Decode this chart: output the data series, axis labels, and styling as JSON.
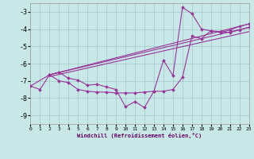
{
  "xlabel": "Windchill (Refroidissement éolien,°C)",
  "background_color": "#c8e8e8",
  "grid_color": "#a0c8c8",
  "line_color": "#993399",
  "xlim": [
    0,
    23
  ],
  "ylim": [
    -9.5,
    -2.5
  ],
  "yticks": [
    -9,
    -8,
    -7,
    -6,
    -5,
    -4,
    -3
  ],
  "xticks": [
    0,
    1,
    2,
    3,
    4,
    5,
    6,
    7,
    8,
    9,
    10,
    11,
    12,
    13,
    14,
    15,
    16,
    17,
    18,
    19,
    20,
    21,
    22,
    23
  ],
  "line1_x": [
    0,
    2,
    3,
    4,
    5,
    6,
    7,
    8,
    9,
    10,
    11,
    12,
    13,
    14,
    15,
    16,
    17,
    18,
    19,
    20,
    21,
    22,
    23
  ],
  "line1_y": [
    -7.3,
    -6.65,
    -7.0,
    -7.1,
    -7.5,
    -7.6,
    -7.65,
    -7.65,
    -7.7,
    -7.7,
    -7.7,
    -7.65,
    -7.6,
    -7.6,
    -7.5,
    -6.8,
    -4.4,
    -4.55,
    -4.1,
    -4.15,
    -4.2,
    -4.05,
    -3.9
  ],
  "line2_x": [
    0,
    1,
    2,
    3,
    4,
    5,
    6,
    7,
    8,
    9,
    10,
    11,
    12,
    13,
    14,
    15,
    16,
    17,
    18,
    19,
    20,
    21,
    22,
    23
  ],
  "line2_y": [
    -7.3,
    -7.5,
    -6.65,
    -6.5,
    -6.85,
    -6.95,
    -7.25,
    -7.2,
    -7.35,
    -7.5,
    -8.5,
    -8.2,
    -8.55,
    -7.6,
    -5.8,
    -6.7,
    -2.75,
    -3.1,
    -4.0,
    -4.1,
    -4.2,
    -4.05,
    -3.85,
    -3.7
  ],
  "reg_lines": [
    {
      "x": [
        2.0,
        23
      ],
      "y": [
        -6.65,
        -3.7
      ]
    },
    {
      "x": [
        2.0,
        23
      ],
      "y": [
        -6.65,
        -3.9
      ]
    },
    {
      "x": [
        2.0,
        23
      ],
      "y": [
        -6.75,
        -4.15
      ]
    }
  ]
}
